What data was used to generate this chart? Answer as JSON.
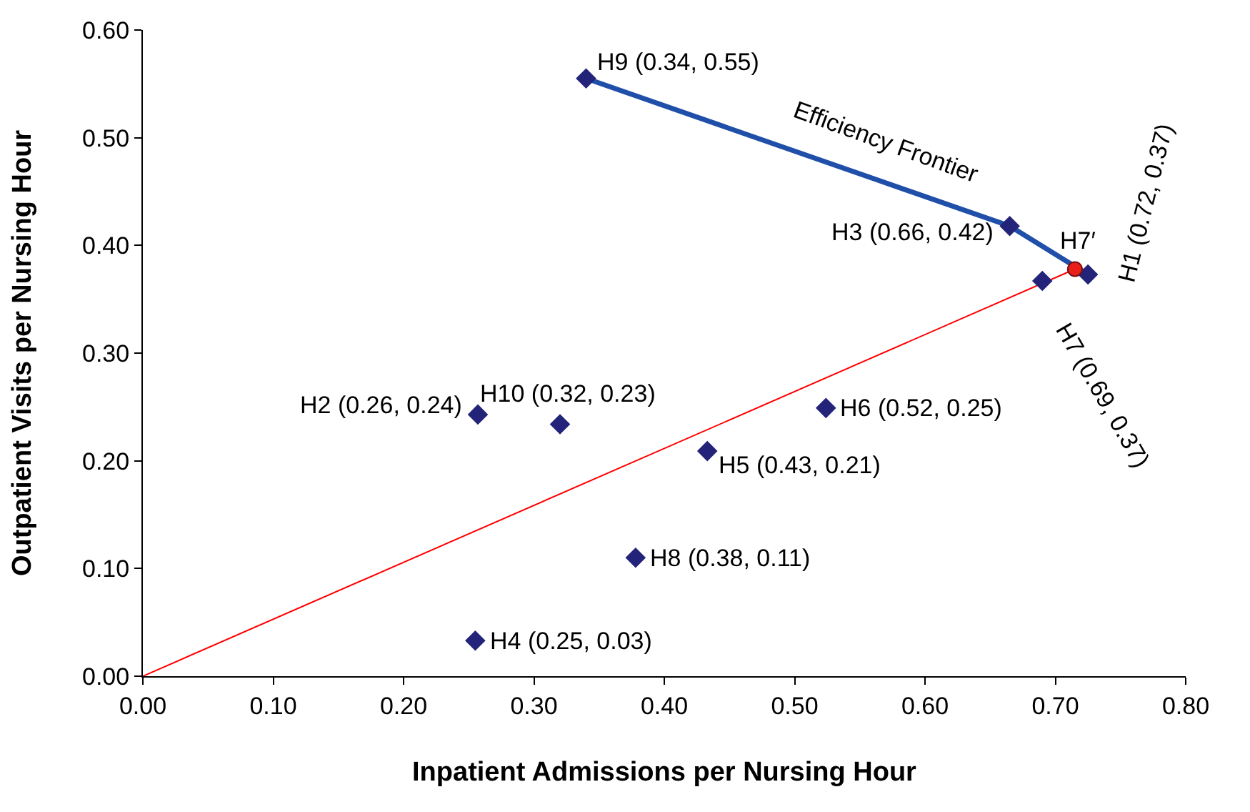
{
  "chart_data": {
    "type": "scatter",
    "xlabel": "Inpatient Admissions per Nursing Hour",
    "ylabel": "Outpatient Visits per Nursing Hour",
    "xlim": [
      0,
      0.8
    ],
    "xticks": [
      {
        "value": 0,
        "label": "0.00"
      },
      {
        "value": 0.1,
        "label": "0.10"
      },
      {
        "value": 0.2,
        "label": "0.20"
      },
      {
        "value": 0.3,
        "label": "0.30"
      },
      {
        "value": 0.4,
        "label": "0.40"
      },
      {
        "value": 0.5,
        "label": "0.50"
      },
      {
        "value": 0.6,
        "label": "0.60"
      },
      {
        "value": 0.7,
        "label": "0.70"
      },
      {
        "value": 0.8,
        "label": "0.80"
      }
    ],
    "ylim": [
      0,
      0.6
    ],
    "yticks": [
      {
        "value": 0,
        "label": "0.00"
      },
      {
        "value": 0.1,
        "label": "0.10"
      },
      {
        "value": 0.2,
        "label": "0.20"
      },
      {
        "value": 0.3,
        "label": "0.30"
      },
      {
        "value": 0.4,
        "label": "0.40"
      },
      {
        "value": 0.5,
        "label": "0.50"
      },
      {
        "value": 0.6,
        "label": "0.60"
      }
    ],
    "grid": false,
    "marker": "diamond",
    "series": [
      {
        "type": "line",
        "color": "#ff0000",
        "marker": "none",
        "x": [
          0,
          0.715
        ],
        "values": [
          0,
          0.378
        ]
      },
      {
        "type": "line",
        "color": "#1f4fa8",
        "marker": "none",
        "x": [
          0.34,
          0.665,
          0.725
        ],
        "values": [
          0.555,
          0.418,
          0.373
        ]
      },
      {
        "color": "#23237a",
        "x": [
          0.725,
          0.257,
          0.665,
          0.255,
          0.433,
          0.524,
          0.69,
          0.378,
          0.34,
          0.32
        ],
        "values": [
          0.373,
          0.243,
          0.418,
          0.033,
          0.209,
          0.249,
          0.367,
          0.11,
          0.555,
          0.234
        ]
      },
      {
        "type": "scatter",
        "color": "#e8201c",
        "marker": "circle",
        "x": [
          0.715
        ],
        "values": [
          0.378
        ]
      }
    ],
    "annotations": [
      {
        "text": "H9 (0.34, 0.55)",
        "x": 0.34,
        "y": 0.555
      },
      {
        "text": "Efficiency Frontier",
        "x": 0.57,
        "y": 0.458
      },
      {
        "text": "H3 (0.66, 0.42)",
        "x": 0.665,
        "y": 0.418
      },
      {
        "text": "H7′",
        "x": 0.715,
        "y": 0.378
      },
      {
        "text": "H1 (0.72, 0.37)",
        "x": 0.725,
        "y": 0.373
      },
      {
        "text": "H7 (0.69, 0.37)",
        "x": 0.69,
        "y": 0.367
      },
      {
        "text": "H2 (0.26, 0.24)",
        "x": 0.257,
        "y": 0.243
      },
      {
        "text": "H10 (0.32, 0.23)",
        "x": 0.32,
        "y": 0.234
      },
      {
        "text": "H6 (0.52, 0.25)",
        "x": 0.524,
        "y": 0.249
      },
      {
        "text": "H5 (0.43, 0.21)",
        "x": 0.433,
        "y": 0.209
      },
      {
        "text": "H8 (0.38, 0.11)",
        "x": 0.378,
        "y": 0.11
      },
      {
        "text": "H4 (0.25, 0.03)",
        "x": 0.255,
        "y": 0.033
      }
    ]
  }
}
